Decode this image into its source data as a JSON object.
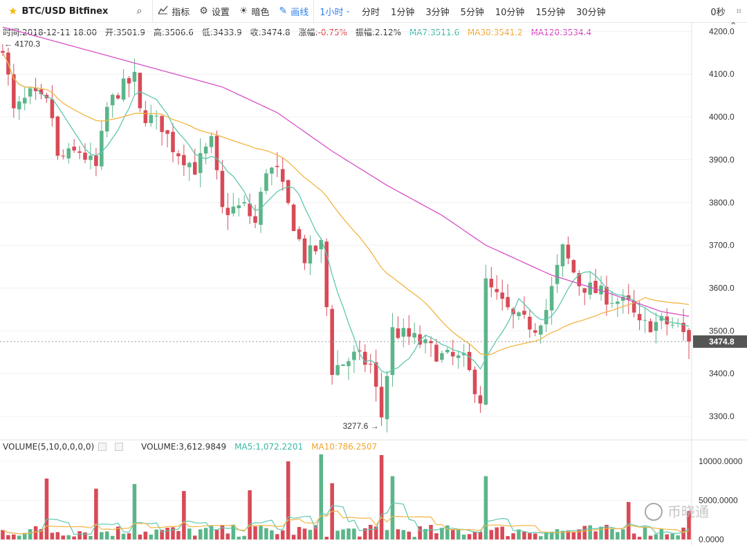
{
  "toolbar": {
    "symbol": "BTC/USD Bitfinex",
    "indicators_label": "指标",
    "settings_label": "设置",
    "theme_label": "暗色",
    "draw_label": "画线",
    "active_interval": "1小时",
    "intervals": [
      "分时",
      "1分钟",
      "3分钟",
      "5分钟",
      "10分钟",
      "15分钟",
      "30分钟"
    ],
    "countdown": "0秒"
  },
  "info": {
    "time": "时间:2018-12-11 18:00",
    "open": "开:3501.9",
    "high": "高:3506.6",
    "low": "低:3433.9",
    "close": "收:3474.8",
    "change": "-0.75%",
    "change_label": "涨幅:",
    "amplitude": "振幅:2.12%",
    "ma7": "MA7:3511.6",
    "ma30": "MA30:3541.2",
    "ma120": "MA120:3534.4"
  },
  "volume_info": {
    "label": "VOLUME(5,10,0,0,0,0)",
    "volume": "VOLUME:3,612.9849",
    "ma5": "MA5:1,072.2201",
    "ma10": "MA10:786.2507"
  },
  "watermark": "币晓通",
  "colors": {
    "up": "#5bb589",
    "down": "#d84a57",
    "ma7": "#5ec7b0",
    "ma30": "#f2b440",
    "ma120": "#d64fc6"
  },
  "chart_data": {
    "type": "candlestick",
    "price_axis": {
      "ticks": [
        3300,
        3400,
        3500,
        3600,
        3700,
        3800,
        3900,
        4000,
        4100,
        4200
      ],
      "min": 3245,
      "max": 4220
    },
    "volume_axis": {
      "ticks": [
        0,
        5000,
        10000
      ],
      "tick_labels": [
        "0.0000",
        "5000.0000",
        "10000.0000"
      ],
      "max": 10800
    },
    "last_price": 3474.8,
    "last_price_label": "3474.8",
    "max_marker": {
      "value": 4170.3,
      "label": "← 4170.3",
      "index": 0
    },
    "min_marker": {
      "value": 3277.6,
      "label": "3277.6 →",
      "index": 69
    },
    "keypoints": [
      [
        0,
        4170
      ],
      [
        2,
        4010
      ],
      [
        5,
        4050
      ],
      [
        8,
        4030
      ],
      [
        9,
        4000
      ],
      [
        10,
        3900
      ],
      [
        14,
        3920
      ],
      [
        17,
        3880
      ],
      [
        19,
        4020
      ],
      [
        21,
        4060
      ],
      [
        24,
        4090
      ],
      [
        25,
        4010
      ],
      [
        29,
        3980
      ],
      [
        31,
        3930
      ],
      [
        35,
        3880
      ],
      [
        38,
        3940
      ],
      [
        40,
        3780
      ],
      [
        44,
        3790
      ],
      [
        46,
        3750
      ],
      [
        48,
        3880
      ],
      [
        50,
        3870
      ],
      [
        55,
        3670
      ],
      [
        58,
        3700
      ],
      [
        60,
        3410
      ],
      [
        64,
        3440
      ],
      [
        67,
        3420
      ],
      [
        69,
        3300
      ],
      [
        71,
        3500
      ],
      [
        75,
        3480
      ],
      [
        80,
        3440
      ],
      [
        84,
        3430
      ],
      [
        87,
        3340
      ],
      [
        88,
        3610
      ],
      [
        93,
        3530
      ],
      [
        97,
        3510
      ],
      [
        99,
        3550
      ],
      [
        102,
        3690
      ],
      [
        105,
        3610
      ],
      [
        110,
        3580
      ],
      [
        114,
        3560
      ],
      [
        116,
        3510
      ],
      [
        120,
        3520
      ],
      [
        123,
        3510
      ],
      [
        125,
        3475
      ]
    ],
    "series": [
      {
        "name": "MA7",
        "period": 7
      },
      {
        "name": "MA30",
        "period": 30
      },
      {
        "name": "MA120",
        "period": 120
      }
    ],
    "ma120_curve": [
      [
        0,
        4210
      ],
      [
        20,
        4140
      ],
      [
        40,
        4070
      ],
      [
        50,
        4010
      ],
      [
        60,
        3920
      ],
      [
        70,
        3840
      ],
      [
        80,
        3770
      ],
      [
        88,
        3700
      ],
      [
        100,
        3630
      ],
      [
        110,
        3590
      ],
      [
        120,
        3545
      ],
      [
        125,
        3534
      ]
    ],
    "volume_spikes": [
      [
        8,
        7800
      ],
      [
        17,
        6500
      ],
      [
        24,
        7100
      ],
      [
        33,
        6200
      ],
      [
        45,
        6300
      ],
      [
        52,
        10000
      ],
      [
        58,
        10900
      ],
      [
        60,
        7200
      ],
      [
        71,
        8100
      ],
      [
        69,
        10800
      ],
      [
        88,
        8100
      ],
      [
        114,
        4800
      ]
    ]
  }
}
